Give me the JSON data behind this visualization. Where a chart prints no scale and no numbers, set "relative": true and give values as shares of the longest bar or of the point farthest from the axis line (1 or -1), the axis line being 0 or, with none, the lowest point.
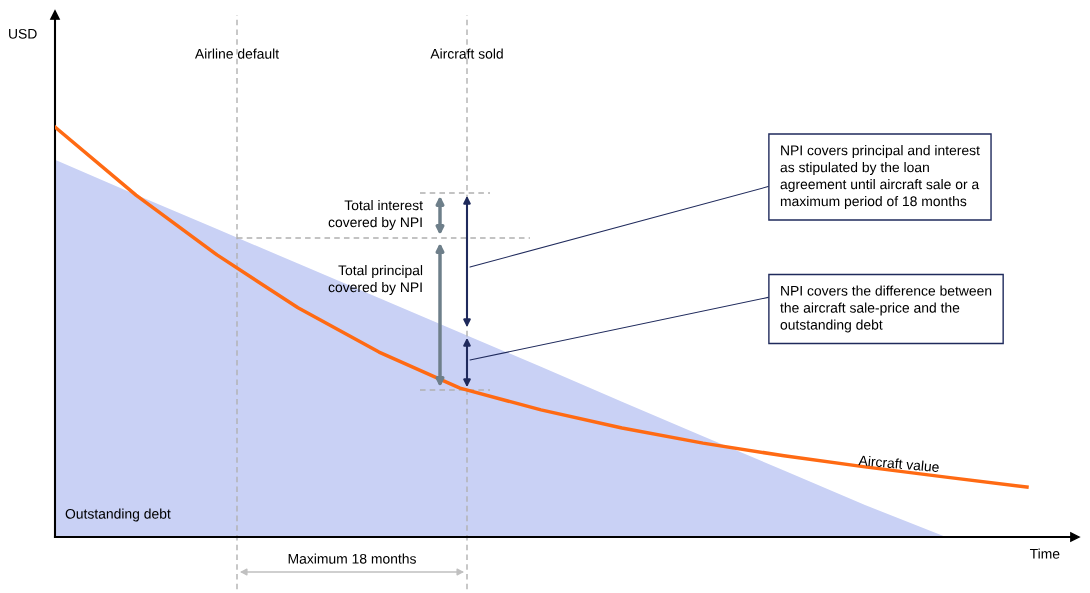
{
  "chart_data": {
    "type": "line",
    "relative": true,
    "xlabel": "Time",
    "categories": [
      null,
      null,
      null,
      null,
      null,
      null,
      null,
      null,
      null,
      null,
      null,
      null,
      null
    ],
    "series": [
      {
        "name": "Outstanding debt",
        "type": "area",
        "color": "#c9d1f5",
        "values": [
          0.92,
          0.835,
          0.751,
          0.667,
          0.583,
          0.499,
          0.415,
          0.33,
          0.246,
          0.162,
          0.078,
          0,
          0
        ]
      },
      {
        "name": "Aircraft value",
        "color": "#ff6a13",
        "values": [
          1.0,
          0.834,
          0.688,
          0.559,
          0.451,
          0.363,
          0.31,
          0.266,
          0.229,
          0.198,
          0.171,
          0.146,
          0.122
        ]
      }
    ],
    "annotations": [
      "Total interest\ncovered by NPI",
      "Total principal\ncovered by NPI",
      "NPI covers principal and interest\nas stipulated by the loan\nagreement until aircraft sale or a\nmaximum period of 18 months",
      "NPI covers the difference between\nthe aircraft sale-price and the\noutstanding debt",
      "Maximum 18 months",
      "Airline default",
      "Aircraft sold",
      "USD"
    ],
    "legend": false,
    "grid": false
  }
}
